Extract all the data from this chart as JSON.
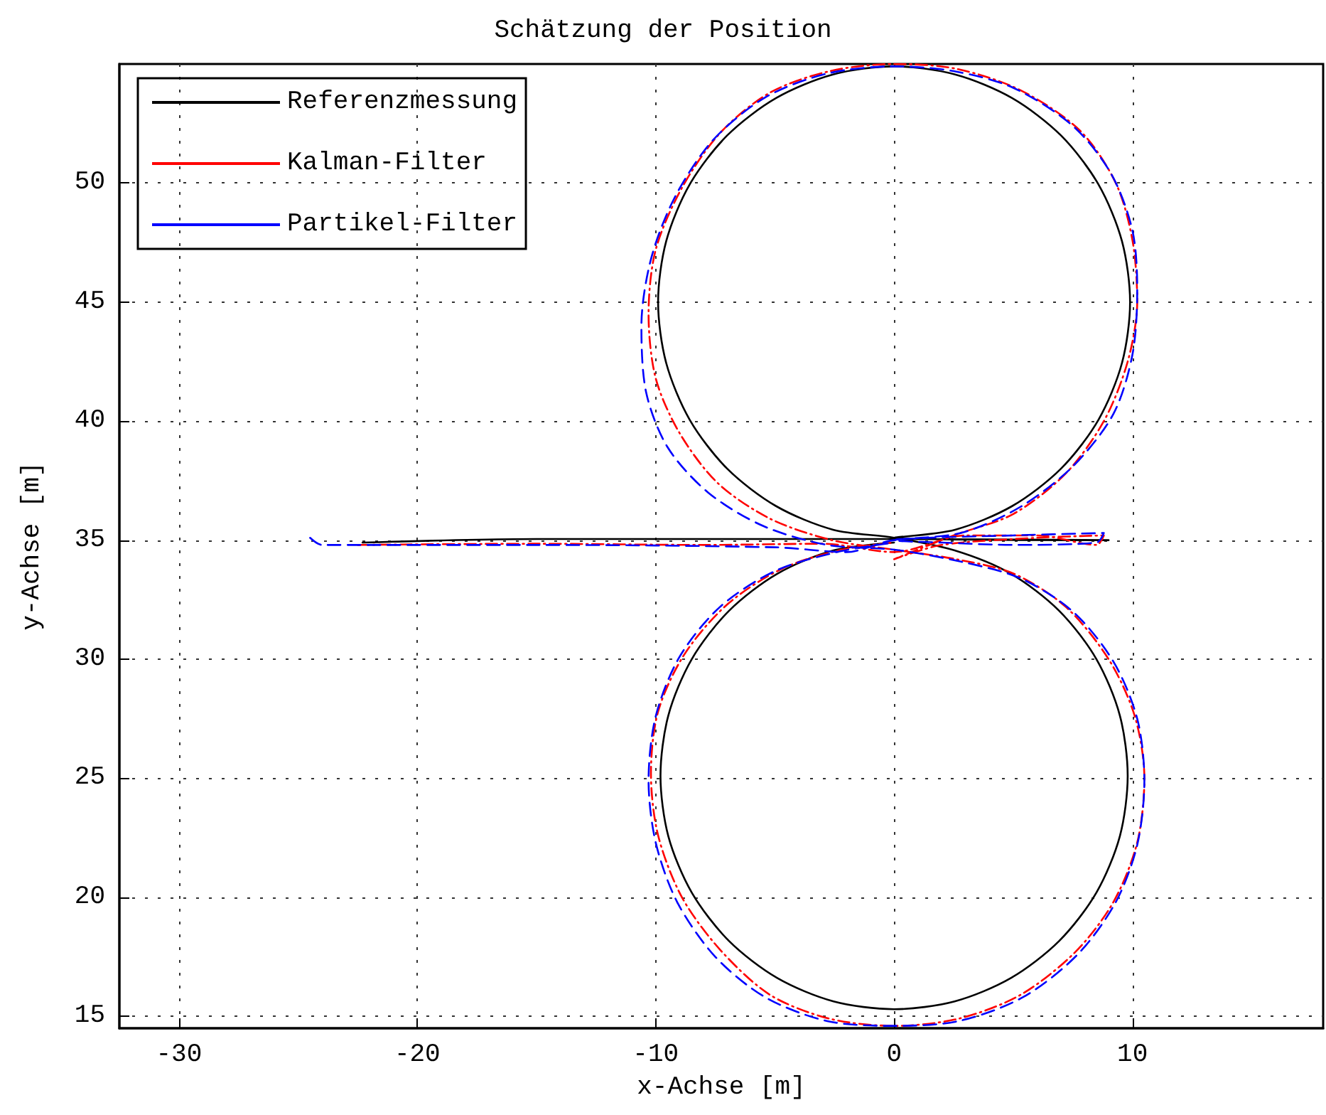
{
  "chart_data": {
    "type": "line",
    "title": "Schätzung der Position",
    "xlabel": "x-Achse [m]",
    "ylabel": "y-Achse [m]",
    "xlim": [
      -32.5,
      18
    ],
    "ylim": [
      14.5,
      55
    ],
    "xticks": [
      -30,
      -20,
      -10,
      0,
      10
    ],
    "yticks": [
      15,
      20,
      25,
      30,
      35,
      40,
      45,
      50
    ],
    "grid": true,
    "legend": "top left",
    "marker": "none",
    "series": [
      {
        "name": "Referenzmessung",
        "color": "#000000",
        "line_style": "solid",
        "x": [
          -22.3,
          -15,
          0,
          9,
          0,
          2.56,
          4.95,
          7.0,
          8.57,
          9.56,
          9.9,
          9.56,
          8.57,
          7.0,
          4.95,
          2.56,
          0,
          -2.56,
          -4.95,
          -7.0,
          -8.57,
          -9.56,
          -9.9,
          -9.56,
          -8.57,
          -7.0,
          -4.95,
          -2.56,
          0,
          2.54,
          4.9,
          6.93,
          8.49,
          9.47,
          9.8,
          9.47,
          8.49,
          6.93,
          4.9,
          2.54,
          0,
          -2.54,
          -4.9,
          -6.93,
          -8.49,
          -9.47,
          -9.8,
          -9.47,
          -8.49,
          -6.93,
          -4.9,
          -2.54,
          0
        ],
        "values": [
          34.9,
          35.05,
          35.05,
          35.0,
          35.1,
          35.44,
          36.43,
          38.0,
          40.05,
          42.44,
          45,
          47.56,
          49.95,
          52.0,
          53.57,
          54.56,
          54.9,
          54.56,
          53.57,
          52.0,
          49.95,
          47.56,
          45,
          42.44,
          40.05,
          38.0,
          36.43,
          35.44,
          35.1,
          34.57,
          33.59,
          32.03,
          30.0,
          27.64,
          25.1,
          22.56,
          20.2,
          18.17,
          16.61,
          15.63,
          15.3,
          15.63,
          16.61,
          18.17,
          20.2,
          22.56,
          25.1,
          27.64,
          30.0,
          32.03,
          33.59,
          34.57,
          34.9
        ]
      },
      {
        "name": "Kalman-Filter",
        "color": "#ff0000",
        "line_style": "dashdot",
        "x": [
          -22.5,
          -15,
          -8,
          -3,
          0,
          3,
          6,
          8.5,
          8.8,
          6,
          2,
          0,
          2.5,
          5,
          7.2,
          8.8,
          9.8,
          10.2,
          10.0,
          9.3,
          7.8,
          5.3,
          2.6,
          0,
          -2.7,
          -5.2,
          -7.3,
          -8.9,
          -10.0,
          -10.3,
          -10.0,
          -9.0,
          -7.4,
          -5.2,
          -2.6,
          0,
          2.6,
          5.0,
          7.2,
          9.0,
          10.1,
          10.5,
          10.2,
          9.2,
          7.6,
          5.3,
          2.7,
          0,
          -2.7,
          -5.2,
          -7.3,
          -8.9,
          -9.9,
          -10.2,
          -9.9,
          -8.8,
          -7.0,
          -4.7,
          -2.2,
          0
        ],
        "values": [
          34.8,
          34.85,
          34.8,
          34.85,
          34.5,
          35.2,
          35.2,
          34.8,
          35.2,
          35.1,
          34.8,
          34.2,
          35.2,
          36.1,
          37.8,
          40.0,
          42.5,
          45.0,
          47.6,
          50.0,
          52.2,
          53.9,
          54.8,
          55.0,
          54.7,
          53.8,
          52.1,
          49.8,
          47.2,
          44.5,
          41.8,
          39.5,
          37.4,
          35.9,
          35.0,
          34.6,
          34.2,
          33.6,
          32.2,
          30.0,
          27.6,
          25.0,
          22.3,
          19.8,
          17.7,
          15.9,
          14.9,
          14.6,
          14.9,
          15.9,
          17.8,
          20.0,
          22.6,
          25.2,
          27.8,
          30.2,
          32.3,
          33.8,
          34.6,
          34.9
        ]
      },
      {
        "name": "Partikel-Filter",
        "color": "#0000ff",
        "line_style": "dashed",
        "x": [
          -24.5,
          -24,
          -15,
          -5,
          -2,
          0,
          5,
          8.8,
          8.5,
          5,
          2,
          0,
          2.8,
          5.3,
          7.5,
          9.2,
          10.0,
          10.2,
          10.0,
          9.1,
          7.5,
          5.0,
          2.5,
          0,
          -2.8,
          -5.4,
          -7.6,
          -9.2,
          -10.2,
          -10.6,
          -10.4,
          -9.5,
          -7.8,
          -5.5,
          -2.8,
          0,
          2.8,
          5.3,
          7.5,
          9.2,
          10.2,
          10.5,
          10.2,
          9.3,
          7.7,
          5.4,
          2.7,
          0,
          -2.8,
          -5.4,
          -7.5,
          -9.1,
          -10.0,
          -10.3,
          -10.0,
          -9.0,
          -7.3,
          -5.0,
          -2.4,
          0
        ],
        "values": [
          35.1,
          34.8,
          34.8,
          34.7,
          34.5,
          35.0,
          35.2,
          35.3,
          34.9,
          34.8,
          34.9,
          35.0,
          35.3,
          36.4,
          38.1,
          40.3,
          42.8,
          45.5,
          48.0,
          50.4,
          52.4,
          54.0,
          54.7,
          54.9,
          54.6,
          53.6,
          51.8,
          49.4,
          46.8,
          44.0,
          41.2,
          38.9,
          37.0,
          35.6,
          34.8,
          34.6,
          34.1,
          33.4,
          32.0,
          29.9,
          27.5,
          24.9,
          22.2,
          19.8,
          17.6,
          15.8,
          14.8,
          14.6,
          14.8,
          15.8,
          17.5,
          19.8,
          22.3,
          24.9,
          27.6,
          30.1,
          32.2,
          33.7,
          34.5,
          34.9
        ]
      }
    ]
  }
}
